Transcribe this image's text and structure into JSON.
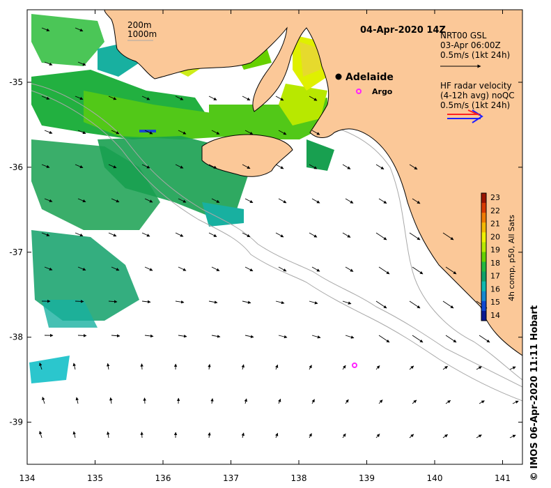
{
  "title": "04-Apr-2020 14Z",
  "credit": "© IMOS 06-Apr-2020 11:11 Hobart",
  "depth_labels": [
    "200m",
    "1000m"
  ],
  "city": {
    "name": "Adelaide",
    "lon": 138.6,
    "lat": -34.93
  },
  "argo": {
    "label": "Argo",
    "floats": [
      {
        "lon": 138.88,
        "lat": -35.12
      },
      {
        "lon": 138.82,
        "lat": -38.34
      }
    ]
  },
  "legend_gsl": {
    "lines": [
      "NRT00 GSL",
      "03-Apr 06:00Z",
      "0.5m/s (1kt 24h)"
    ]
  },
  "legend_hf": {
    "lines": [
      "HF radar velocity",
      "(4-12h avg) noQC",
      "0.5m/s (1kt 24h)"
    ]
  },
  "colorbar": {
    "label": "4h comp, p50, All Sats",
    "ticks": [
      23,
      22,
      21,
      20,
      19,
      18,
      17,
      16,
      15,
      14
    ],
    "colors": [
      "#9a1400",
      "#d83a00",
      "#f07a00",
      "#f4b800",
      "#eef000",
      "#b8e800",
      "#66d000",
      "#22b840",
      "#10a068",
      "#10b8b0",
      "#1488d0",
      "#1048d0",
      "#0a1890"
    ]
  },
  "axes": {
    "lon_ticks": [
      134,
      135,
      136,
      137,
      138,
      139,
      140,
      141
    ],
    "lat_ticks": [
      -35,
      -36,
      -37,
      -38,
      -39
    ],
    "lon_range": [
      134,
      141.3
    ],
    "lat_range": [
      -34.0,
      -39.5
    ]
  },
  "colors": {
    "land": "#fbc898",
    "coast": "#000000",
    "isobath": "#a8a8a8",
    "arrow": "#000000"
  }
}
